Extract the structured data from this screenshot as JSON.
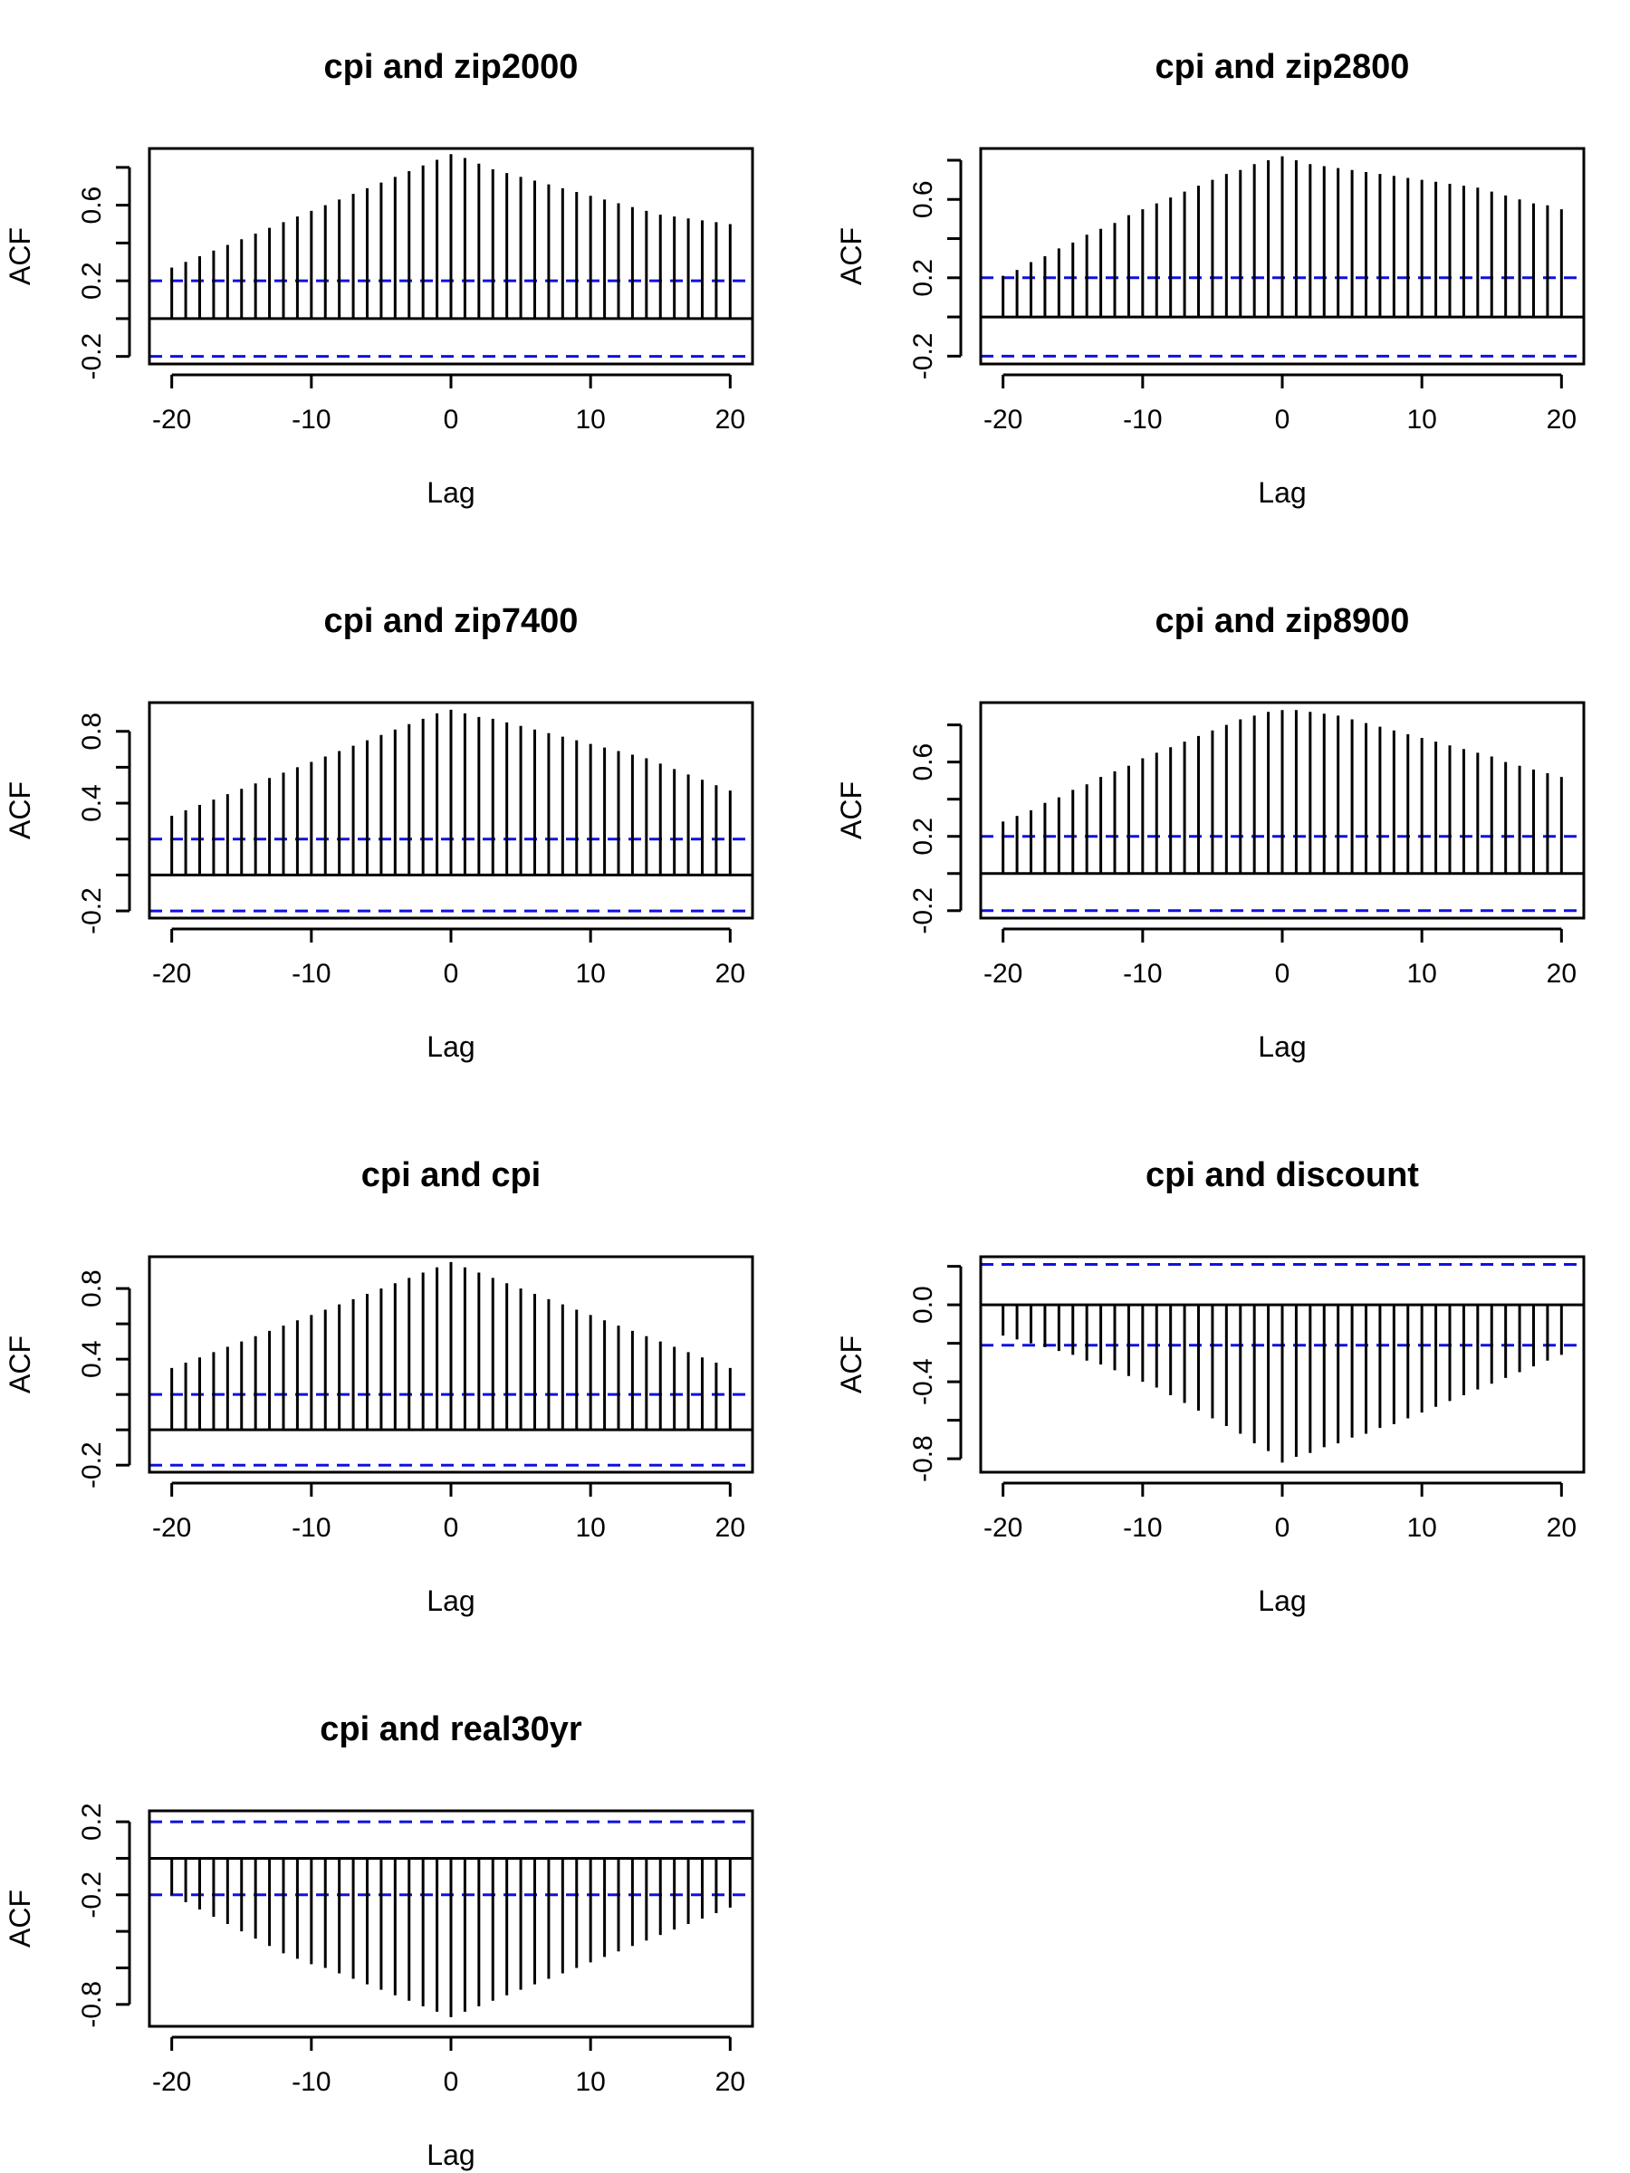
{
  "chart_data": [
    {
      "type": "bar",
      "title": "cpi and zip2000",
      "xlabel": "Lag",
      "ylabel": "ACF",
      "xlim": [
        -21.6,
        21.6
      ],
      "ylim": [
        -0.24,
        0.9
      ],
      "xticks": [
        -20,
        -10,
        0,
        10,
        20
      ],
      "xtick_labels": [
        "-20",
        "-10",
        "0",
        "10",
        "20"
      ],
      "yticks": [
        -0.2,
        0.0,
        0.2,
        0.4,
        0.6,
        0.8
      ],
      "ytick_labels": [
        "-0.2",
        "",
        "0.2",
        "",
        "0.6",
        ""
      ],
      "ci": 0.2,
      "lags": [
        -20,
        -19,
        -18,
        -17,
        -16,
        -15,
        -14,
        -13,
        -12,
        -11,
        -10,
        -9,
        -8,
        -7,
        -6,
        -5,
        -4,
        -3,
        -2,
        -1,
        0,
        1,
        2,
        3,
        4,
        5,
        6,
        7,
        8,
        9,
        10,
        11,
        12,
        13,
        14,
        15,
        16,
        17,
        18,
        19,
        20
      ],
      "values": [
        0.27,
        0.3,
        0.33,
        0.36,
        0.39,
        0.42,
        0.45,
        0.48,
        0.51,
        0.54,
        0.57,
        0.6,
        0.63,
        0.66,
        0.69,
        0.72,
        0.75,
        0.78,
        0.81,
        0.84,
        0.87,
        0.85,
        0.82,
        0.79,
        0.77,
        0.75,
        0.73,
        0.71,
        0.69,
        0.67,
        0.65,
        0.63,
        0.61,
        0.59,
        0.57,
        0.55,
        0.54,
        0.53,
        0.52,
        0.51,
        0.5
      ]
    },
    {
      "type": "bar",
      "title": "cpi and zip2800",
      "xlabel": "Lag",
      "ylabel": "ACF",
      "xlim": [
        -21.6,
        21.6
      ],
      "ylim": [
        -0.24,
        0.86
      ],
      "xticks": [
        -20,
        -10,
        0,
        10,
        20
      ],
      "xtick_labels": [
        "-20",
        "-10",
        "0",
        "10",
        "20"
      ],
      "yticks": [
        -0.2,
        0.0,
        0.2,
        0.4,
        0.6,
        0.8
      ],
      "ytick_labels": [
        "-0.2",
        "",
        "0.2",
        "",
        "0.6",
        ""
      ],
      "ci": 0.2,
      "lags": [
        -20,
        -19,
        -18,
        -17,
        -16,
        -15,
        -14,
        -13,
        -12,
        -11,
        -10,
        -9,
        -8,
        -7,
        -6,
        -5,
        -4,
        -3,
        -2,
        -1,
        0,
        1,
        2,
        3,
        4,
        5,
        6,
        7,
        8,
        9,
        10,
        11,
        12,
        13,
        14,
        15,
        16,
        17,
        18,
        19,
        20
      ],
      "values": [
        0.21,
        0.24,
        0.28,
        0.31,
        0.35,
        0.38,
        0.42,
        0.45,
        0.48,
        0.52,
        0.55,
        0.58,
        0.61,
        0.64,
        0.67,
        0.7,
        0.73,
        0.75,
        0.78,
        0.8,
        0.82,
        0.8,
        0.78,
        0.77,
        0.76,
        0.75,
        0.74,
        0.73,
        0.72,
        0.71,
        0.7,
        0.69,
        0.68,
        0.67,
        0.66,
        0.64,
        0.62,
        0.6,
        0.58,
        0.57,
        0.55
      ]
    },
    {
      "type": "bar",
      "title": "cpi and zip7400",
      "xlabel": "Lag",
      "ylabel": "ACF",
      "xlim": [
        -21.6,
        21.6
      ],
      "ylim": [
        -0.24,
        0.96
      ],
      "xticks": [
        -20,
        -10,
        0,
        10,
        20
      ],
      "xtick_labels": [
        "-20",
        "-10",
        "0",
        "10",
        "20"
      ],
      "yticks": [
        -0.2,
        0.0,
        0.2,
        0.4,
        0.6,
        0.8
      ],
      "ytick_labels": [
        "-0.2",
        "",
        "",
        "0.4",
        "",
        "0.8"
      ],
      "ci": 0.2,
      "lags": [
        -20,
        -19,
        -18,
        -17,
        -16,
        -15,
        -14,
        -13,
        -12,
        -11,
        -10,
        -9,
        -8,
        -7,
        -6,
        -5,
        -4,
        -3,
        -2,
        -1,
        0,
        1,
        2,
        3,
        4,
        5,
        6,
        7,
        8,
        9,
        10,
        11,
        12,
        13,
        14,
        15,
        16,
        17,
        18,
        19,
        20
      ],
      "values": [
        0.33,
        0.36,
        0.39,
        0.42,
        0.45,
        0.48,
        0.51,
        0.54,
        0.57,
        0.6,
        0.63,
        0.66,
        0.69,
        0.72,
        0.75,
        0.78,
        0.81,
        0.84,
        0.87,
        0.9,
        0.92,
        0.9,
        0.88,
        0.87,
        0.85,
        0.83,
        0.81,
        0.79,
        0.77,
        0.75,
        0.73,
        0.71,
        0.69,
        0.67,
        0.65,
        0.62,
        0.59,
        0.56,
        0.53,
        0.5,
        0.47
      ]
    },
    {
      "type": "bar",
      "title": "cpi and zip8900",
      "xlabel": "Lag",
      "ylabel": "ACF",
      "xlim": [
        -21.6,
        21.6
      ],
      "ylim": [
        -0.24,
        0.92
      ],
      "xticks": [
        -20,
        -10,
        0,
        10,
        20
      ],
      "xtick_labels": [
        "-20",
        "-10",
        "0",
        "10",
        "20"
      ],
      "yticks": [
        -0.2,
        0.0,
        0.2,
        0.4,
        0.6,
        0.8
      ],
      "ytick_labels": [
        "-0.2",
        "",
        "0.2",
        "",
        "0.6",
        ""
      ],
      "ci": 0.2,
      "lags": [
        -20,
        -19,
        -18,
        -17,
        -16,
        -15,
        -14,
        -13,
        -12,
        -11,
        -10,
        -9,
        -8,
        -7,
        -6,
        -5,
        -4,
        -3,
        -2,
        -1,
        0,
        1,
        2,
        3,
        4,
        5,
        6,
        7,
        8,
        9,
        10,
        11,
        12,
        13,
        14,
        15,
        16,
        17,
        18,
        19,
        20
      ],
      "values": [
        0.28,
        0.31,
        0.34,
        0.38,
        0.41,
        0.45,
        0.48,
        0.52,
        0.55,
        0.58,
        0.62,
        0.65,
        0.68,
        0.71,
        0.74,
        0.77,
        0.8,
        0.83,
        0.85,
        0.87,
        0.88,
        0.88,
        0.87,
        0.86,
        0.85,
        0.83,
        0.81,
        0.79,
        0.77,
        0.75,
        0.73,
        0.71,
        0.69,
        0.67,
        0.65,
        0.63,
        0.6,
        0.58,
        0.56,
        0.54,
        0.52
      ]
    },
    {
      "type": "bar",
      "title": "cpi and cpi",
      "xlabel": "Lag",
      "ylabel": "ACF",
      "xlim": [
        -21.6,
        21.6
      ],
      "ylim": [
        -0.24,
        0.98
      ],
      "xticks": [
        -20,
        -10,
        0,
        10,
        20
      ],
      "xtick_labels": [
        "-20",
        "-10",
        "0",
        "10",
        "20"
      ],
      "yticks": [
        -0.2,
        0.0,
        0.2,
        0.4,
        0.6,
        0.8
      ],
      "ytick_labels": [
        "-0.2",
        "",
        "",
        "0.4",
        "",
        "0.8"
      ],
      "ci": 0.2,
      "lags": [
        -20,
        -19,
        -18,
        -17,
        -16,
        -15,
        -14,
        -13,
        -12,
        -11,
        -10,
        -9,
        -8,
        -7,
        -6,
        -5,
        -4,
        -3,
        -2,
        -1,
        0,
        1,
        2,
        3,
        4,
        5,
        6,
        7,
        8,
        9,
        10,
        11,
        12,
        13,
        14,
        15,
        16,
        17,
        18,
        19,
        20
      ],
      "values": [
        0.35,
        0.38,
        0.41,
        0.44,
        0.47,
        0.5,
        0.53,
        0.56,
        0.59,
        0.62,
        0.65,
        0.68,
        0.71,
        0.74,
        0.77,
        0.8,
        0.83,
        0.86,
        0.89,
        0.92,
        0.95,
        0.92,
        0.89,
        0.86,
        0.83,
        0.8,
        0.77,
        0.74,
        0.71,
        0.68,
        0.65,
        0.62,
        0.59,
        0.56,
        0.53,
        0.5,
        0.47,
        0.44,
        0.41,
        0.38,
        0.35
      ]
    },
    {
      "type": "bar",
      "title": "cpi and discount",
      "xlabel": "Lag",
      "ylabel": "ACF",
      "xlim": [
        -21.6,
        21.6
      ],
      "ylim": [
        -0.87,
        0.25
      ],
      "xticks": [
        -20,
        -10,
        0,
        10,
        20
      ],
      "xtick_labels": [
        "-20",
        "-10",
        "0",
        "10",
        "20"
      ],
      "yticks": [
        -0.8,
        -0.6,
        -0.4,
        -0.2,
        0.0,
        0.2
      ],
      "ytick_labels": [
        "-0.8",
        "",
        "-0.4",
        "",
        "0.0",
        ""
      ],
      "ci": 0.21,
      "lags": [
        -20,
        -19,
        -18,
        -17,
        -16,
        -15,
        -14,
        -13,
        -12,
        -11,
        -10,
        -9,
        -8,
        -7,
        -6,
        -5,
        -4,
        -3,
        -2,
        -1,
        0,
        1,
        2,
        3,
        4,
        5,
        6,
        7,
        8,
        9,
        10,
        11,
        12,
        13,
        14,
        15,
        16,
        17,
        18,
        19,
        20
      ],
      "values": [
        -0.16,
        -0.18,
        -0.2,
        -0.22,
        -0.24,
        -0.26,
        -0.29,
        -0.31,
        -0.34,
        -0.37,
        -0.4,
        -0.43,
        -0.47,
        -0.51,
        -0.55,
        -0.59,
        -0.63,
        -0.67,
        -0.72,
        -0.76,
        -0.82,
        -0.79,
        -0.77,
        -0.74,
        -0.72,
        -0.69,
        -0.67,
        -0.64,
        -0.62,
        -0.59,
        -0.56,
        -0.53,
        -0.5,
        -0.47,
        -0.44,
        -0.41,
        -0.38,
        -0.35,
        -0.32,
        -0.29,
        -0.26
      ]
    },
    {
      "type": "bar",
      "title": "cpi and real30yr",
      "xlabel": "Lag",
      "ylabel": "ACF",
      "xlim": [
        -21.6,
        21.6
      ],
      "ylim": [
        -0.92,
        0.26
      ],
      "xticks": [
        -20,
        -10,
        0,
        10,
        20
      ],
      "xtick_labels": [
        "-20",
        "-10",
        "0",
        "10",
        "20"
      ],
      "yticks": [
        -0.8,
        -0.6,
        -0.4,
        -0.2,
        0.0,
        0.2
      ],
      "ytick_labels": [
        "-0.8",
        "",
        "",
        "-0.2",
        "",
        "0.2"
      ],
      "ci": 0.2,
      "lags": [
        -20,
        -19,
        -18,
        -17,
        -16,
        -15,
        -14,
        -13,
        -12,
        -11,
        -10,
        -9,
        -8,
        -7,
        -6,
        -5,
        -4,
        -3,
        -2,
        -1,
        0,
        1,
        2,
        3,
        4,
        5,
        6,
        7,
        8,
        9,
        10,
        11,
        12,
        13,
        14,
        15,
        16,
        17,
        18,
        19,
        20
      ],
      "values": [
        -0.2,
        -0.24,
        -0.28,
        -0.32,
        -0.36,
        -0.4,
        -0.44,
        -0.48,
        -0.52,
        -0.55,
        -0.58,
        -0.6,
        -0.63,
        -0.66,
        -0.69,
        -0.72,
        -0.75,
        -0.78,
        -0.81,
        -0.84,
        -0.87,
        -0.84,
        -0.81,
        -0.78,
        -0.75,
        -0.72,
        -0.69,
        -0.66,
        -0.63,
        -0.6,
        -0.57,
        -0.54,
        -0.51,
        -0.48,
        -0.45,
        -0.42,
        -0.39,
        -0.36,
        -0.33,
        -0.3,
        -0.27
      ]
    }
  ],
  "colors": {
    "bars": "#000000",
    "ci_lines": "#1010e0",
    "zero_line": "#000000",
    "background": "#ffffff"
  }
}
